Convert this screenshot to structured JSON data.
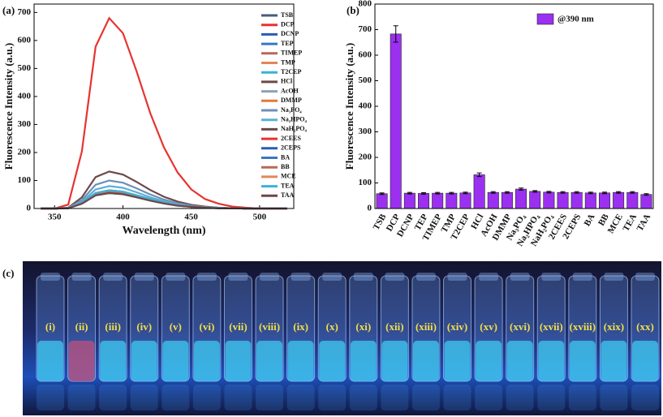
{
  "chart_data": [
    {
      "type": "line",
      "panel": "(a)",
      "xlabel": "Wavelength (nm)",
      "ylabel": "Fluorescence Intensity (a.u.)",
      "x": [
        340,
        350,
        360,
        370,
        380,
        390,
        400,
        410,
        420,
        430,
        440,
        450,
        460,
        470,
        480,
        490,
        500,
        510,
        520
      ],
      "xlim": [
        335,
        525
      ],
      "xticks": [
        350,
        400,
        450,
        500
      ],
      "ylim": [
        0,
        730
      ],
      "yticks": [
        0,
        100,
        200,
        300,
        400,
        500,
        600,
        700
      ],
      "legend": "upper right",
      "series": [
        {
          "name": "TSB",
          "color": "#4a5b7a",
          "values": [
            0,
            0,
            1,
            18,
            51,
            60,
            55,
            43,
            30,
            19,
            11,
            6,
            3,
            2,
            1,
            0,
            0,
            0,
            0
          ]
        },
        {
          "name": "DCP",
          "color": "#e8332f",
          "values": [
            0,
            0,
            14,
            204,
            578,
            680,
            626,
            490,
            340,
            218,
            129,
            68,
            34,
            17,
            7,
            3,
            0,
            0,
            0
          ]
        },
        {
          "name": "DCNP",
          "color": "#2a5cb8",
          "values": [
            0,
            0,
            1,
            18,
            51,
            60,
            55,
            43,
            30,
            19,
            11,
            6,
            3,
            2,
            1,
            0,
            0,
            0,
            0
          ]
        },
        {
          "name": "TEP",
          "color": "#3a78c0",
          "values": [
            0,
            0,
            1,
            17,
            47,
            55,
            51,
            40,
            28,
            18,
            10,
            6,
            3,
            1,
            1,
            0,
            0,
            0,
            0
          ]
        },
        {
          "name": "TIMEP",
          "color": "#b86a55",
          "values": [
            0,
            0,
            1,
            18,
            51,
            60,
            55,
            43,
            30,
            19,
            11,
            6,
            3,
            2,
            1,
            0,
            0,
            0,
            0
          ]
        },
        {
          "name": "TMP",
          "color": "#e2875a",
          "values": [
            0,
            0,
            1,
            18,
            51,
            60,
            55,
            43,
            30,
            19,
            11,
            6,
            3,
            2,
            1,
            0,
            0,
            0,
            0
          ]
        },
        {
          "name": "T2CEP",
          "color": "#3ab3d8",
          "values": [
            0,
            0,
            1,
            18,
            51,
            60,
            55,
            43,
            30,
            19,
            11,
            6,
            3,
            2,
            1,
            0,
            0,
            0,
            0
          ]
        },
        {
          "name": "HCl",
          "color": "#6e4848",
          "values": [
            0,
            0,
            3,
            40,
            112,
            132,
            121,
            95,
            66,
            42,
            25,
            13,
            7,
            3,
            1,
            1,
            0,
            0,
            0
          ]
        },
        {
          "name": "AcOH",
          "color": "#8aa3b8",
          "values": [
            0,
            0,
            1,
            20,
            55,
            65,
            60,
            47,
            33,
            21,
            12,
            7,
            3,
            2,
            1,
            0,
            0,
            0,
            0
          ]
        },
        {
          "name": "DMMP",
          "color": "#e27a3a",
          "values": [
            0,
            0,
            1,
            20,
            55,
            65,
            60,
            47,
            33,
            21,
            12,
            7,
            3,
            2,
            1,
            0,
            0,
            0,
            0
          ]
        },
        {
          "name": "Na₃PO₄",
          "color": "#6e8fb8",
          "values": [
            0,
            0,
            2,
            30,
            85,
            100,
            92,
            72,
            50,
            32,
            19,
            10,
            5,
            3,
            1,
            1,
            0,
            0,
            0
          ]
        },
        {
          "name": "Na₂HPO₄",
          "color": "#5ab0d8",
          "values": [
            0,
            0,
            2,
            24,
            68,
            80,
            74,
            58,
            40,
            26,
            15,
            8,
            4,
            2,
            1,
            0,
            0,
            0,
            0
          ]
        },
        {
          "name": "NaH₂PO₄",
          "color": "#6a4a4a",
          "values": [
            0,
            0,
            1,
            20,
            55,
            65,
            60,
            47,
            33,
            21,
            12,
            7,
            3,
            2,
            1,
            0,
            0,
            0,
            0
          ]
        },
        {
          "name": "2CEES",
          "color": "#e8332f",
          "values": [
            0,
            0,
            1,
            20,
            55,
            65,
            60,
            47,
            33,
            21,
            12,
            7,
            3,
            2,
            1,
            0,
            0,
            0,
            0
          ]
        },
        {
          "name": "2CEPS",
          "color": "#2a5cb8",
          "values": [
            0,
            0,
            1,
            20,
            55,
            65,
            60,
            47,
            33,
            21,
            12,
            7,
            3,
            2,
            1,
            0,
            0,
            0,
            0
          ]
        },
        {
          "name": "BA",
          "color": "#3a78c0",
          "values": [
            0,
            0,
            1,
            18,
            51,
            60,
            55,
            43,
            30,
            19,
            11,
            6,
            3,
            2,
            1,
            0,
            0,
            0,
            0
          ]
        },
        {
          "name": "BB",
          "color": "#b86a55",
          "values": [
            0,
            0,
            1,
            18,
            51,
            60,
            55,
            43,
            30,
            19,
            11,
            6,
            3,
            2,
            1,
            0,
            0,
            0,
            0
          ]
        },
        {
          "name": "MCE",
          "color": "#e2875a",
          "values": [
            0,
            0,
            1,
            20,
            55,
            65,
            60,
            47,
            33,
            21,
            12,
            7,
            3,
            2,
            1,
            0,
            0,
            0,
            0
          ]
        },
        {
          "name": "TEA",
          "color": "#3ab3d8",
          "values": [
            0,
            0,
            1,
            20,
            55,
            65,
            60,
            47,
            33,
            21,
            12,
            7,
            3,
            2,
            1,
            0,
            0,
            0,
            0
          ]
        },
        {
          "name": "TAA",
          "color": "#6e4848",
          "values": [
            0,
            0,
            1,
            17,
            47,
            55,
            51,
            40,
            28,
            18,
            10,
            6,
            3,
            1,
            1,
            0,
            0,
            0,
            0
          ]
        }
      ]
    },
    {
      "type": "bar",
      "panel": "(b)",
      "ylabel": "Fluorescence Intensity (a.u.)",
      "categories": [
        "TSB",
        "DCP",
        "DCNP",
        "TEP",
        "TIMEP",
        "TMP",
        "T2CEP",
        "HCl",
        "AcOH",
        "DMMP",
        "Na₃PO₄",
        "Na₂HPO₄",
        "NaH₂PO₄",
        "2CEES",
        "2CEPS",
        "BA",
        "BB",
        "MCE",
        "TEA",
        "TAA"
      ],
      "ylim": [
        0,
        800
      ],
      "yticks": [
        0,
        100,
        200,
        300,
        400,
        500,
        600,
        700,
        800
      ],
      "legend": "upper right",
      "series": [
        {
          "name": "@390 nm",
          "color": "#9b30f0",
          "values": [
            58,
            683,
            60,
            59,
            60,
            60,
            61,
            132,
            63,
            63,
            76,
            67,
            64,
            63,
            63,
            61,
            61,
            63,
            63,
            55
          ],
          "errors": [
            3,
            32,
            3,
            3,
            3,
            3,
            3,
            7,
            3,
            3,
            4,
            3,
            3,
            3,
            3,
            3,
            3,
            3,
            3,
            3
          ]
        }
      ]
    }
  ],
  "photo": {
    "panel": "(c)",
    "vial_labels": [
      "(i)",
      "(ii)",
      "(iii)",
      "(iv)",
      "(v)",
      "(vi)",
      "(vii)",
      "(viii)",
      "(ix)",
      "(x)",
      "(xi)",
      "(xii)",
      "(xiii)",
      "(xiv)",
      "(xv)",
      "(xvi)",
      "(xvii)",
      "(xviii)",
      "(xix)",
      "(xx)"
    ]
  }
}
